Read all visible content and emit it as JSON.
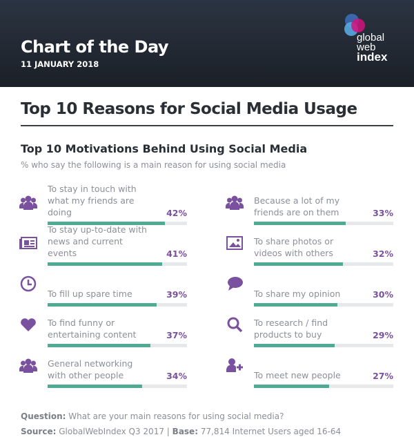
{
  "header": {
    "title": "Chart of the Day",
    "date": "11 JANUARY 2018",
    "logo": [
      "global",
      "web",
      "index"
    ]
  },
  "colors": {
    "accent": "#7a519e",
    "bar": "#50ab94",
    "track": "#e6e8ea"
  },
  "chart_data": {
    "type": "bar",
    "title": "Top 10 Reasons for Social Media Usage",
    "subtitle": "Top 10 Motivations Behind Using Social Media",
    "description": "% who say the following is a main reason for using social media",
    "xlim": [
      0,
      50
    ],
    "categories": [
      "To stay in touch with what my friends are doing",
      "To stay up-to-date with news and current events",
      "To fill up spare time",
      "To find funny or entertaining content",
      "General networking with other people",
      "Because a lot of my friends are on them",
      "To share photos or videos with others",
      "To share my opinion",
      "To research / find products to buy",
      "To meet new people"
    ],
    "values": [
      42,
      41,
      39,
      37,
      34,
      33,
      32,
      30,
      29,
      27
    ],
    "labels": [
      "42%",
      "41%",
      "39%",
      "37%",
      "34%",
      "33%",
      "32%",
      "30%",
      "29%",
      "27%"
    ],
    "icons": [
      "group-icon",
      "newspaper-icon",
      "clock-icon",
      "heart-icon",
      "group-icon",
      "group-icon",
      "image-icon",
      "speech-bubble-icon",
      "search-icon",
      "add-user-icon"
    ]
  },
  "footer": {
    "question_label": "Question:",
    "question": "What are your main reasons for using social media?",
    "source_label": "Source:",
    "source": "GlobalWebIndex Q3 2017",
    "separator": "|",
    "base_label": "Base:",
    "base": "77,814 Internet Users aged 16-64"
  }
}
